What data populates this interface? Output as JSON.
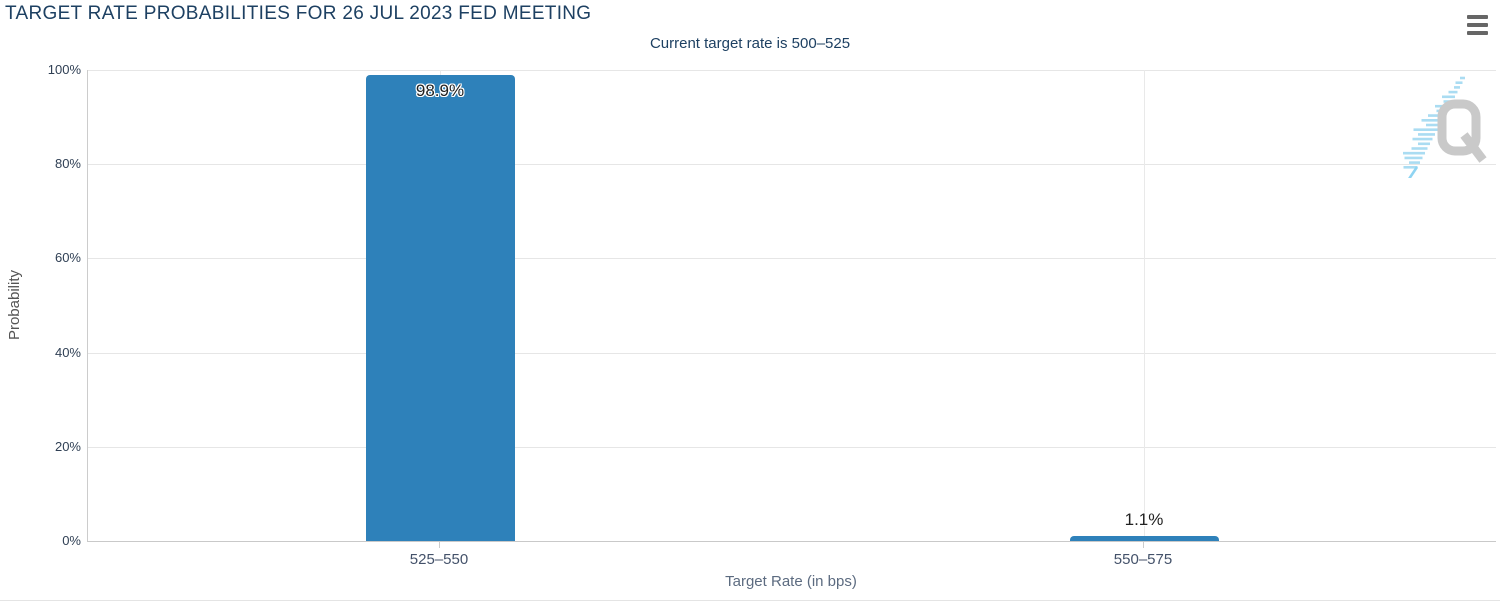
{
  "chart_data": {
    "type": "bar",
    "title": "TARGET RATE PROBABILITIES FOR 26 JUL 2023 FED MEETING",
    "subtitle": "Current target rate is 500–525",
    "categories": [
      "525–550",
      "550–575"
    ],
    "values": [
      98.9,
      1.1
    ],
    "value_labels": [
      "98.9%",
      "1.1%"
    ],
    "xlabel": "Target Rate (in bps)",
    "ylabel": "Probability",
    "ylim": [
      0,
      100
    ],
    "yticks": [
      "0%",
      "20%",
      "40%",
      "60%",
      "80%",
      "100%"
    ],
    "grid": true,
    "legend": "none",
    "bar_color": "#2e81ba"
  },
  "icons": {
    "context_menu": "hamburger-icon",
    "watermark": "quikstrike-q-logo"
  },
  "watermark_letter": "Q",
  "colors": {
    "title_navy": "#1d4062",
    "bar_blue": "#2e81ba",
    "gridline": "#e6e6e6",
    "axis_line": "#cccccc",
    "menu_icon_gray": "#666666",
    "watermark_gray": "#c9c9c9",
    "watermark_blue": "#aadcf2"
  }
}
